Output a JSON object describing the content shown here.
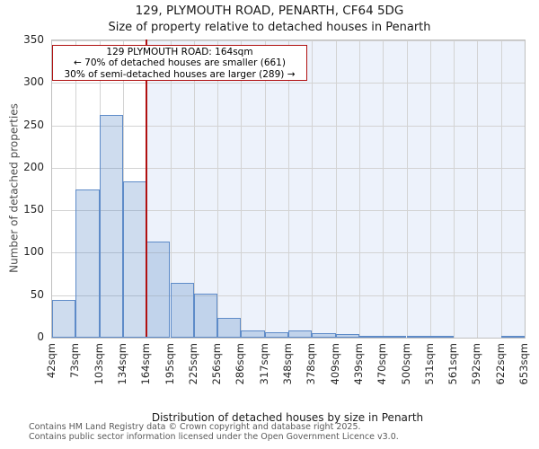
{
  "title": "129, PLYMOUTH ROAD, PENARTH, CF64 5DG",
  "subtitle": "Size of property relative to detached houses in Penarth",
  "annotation": {
    "line1": "129 PLYMOUTH ROAD: 164sqm",
    "line2": "← 70% of detached houses are smaller (661)",
    "line3": "30% of semi-detached houses are larger (289) →"
  },
  "footer": {
    "line1": "Contains HM Land Registry data © Crown copyright and database right 2025.",
    "line2": "Contains public sector information licensed under the Open Government Licence v3.0."
  },
  "chart_data": {
    "type": "bar",
    "title": "129, PLYMOUTH ROAD, PENARTH, CF64 5DG",
    "subtitle": "Size of property relative to detached houses in Penarth",
    "xlabel": "Distribution of detached houses by size in Penarth",
    "ylabel": "Number of detached properties",
    "ylim": [
      0,
      350
    ],
    "y_ticks": [
      0,
      50,
      100,
      150,
      200,
      250,
      300,
      350
    ],
    "x_tick_labels": [
      "42sqm",
      "73sqm",
      "103sqm",
      "134sqm",
      "164sqm",
      "195sqm",
      "225sqm",
      "256sqm",
      "286sqm",
      "317sqm",
      "348sqm",
      "378sqm",
      "409sqm",
      "439sqm",
      "470sqm",
      "500sqm",
      "531sqm",
      "561sqm",
      "592sqm",
      "622sqm",
      "653sqm"
    ],
    "bin_edges_sqm": [
      42,
      73,
      103,
      134,
      164,
      195,
      225,
      256,
      286,
      317,
      348,
      378,
      409,
      439,
      470,
      500,
      531,
      561,
      592,
      622,
      653
    ],
    "values": [
      44,
      175,
      262,
      184,
      113,
      65,
      52,
      23,
      8,
      6,
      8,
      5,
      4,
      2,
      2,
      1,
      1,
      0,
      0,
      1
    ],
    "marker_sqm": 164,
    "grid": true,
    "legend": "none",
    "colors": {
      "bar_fill": "rgba(94,139,200,0.30)",
      "bar_edge": "#5e8bc8",
      "marker_line": "#b01010",
      "annotation_border": "#b01010",
      "shade_right_of_marker": "#edf2fb",
      "gridline": "#d3d3d3"
    }
  }
}
